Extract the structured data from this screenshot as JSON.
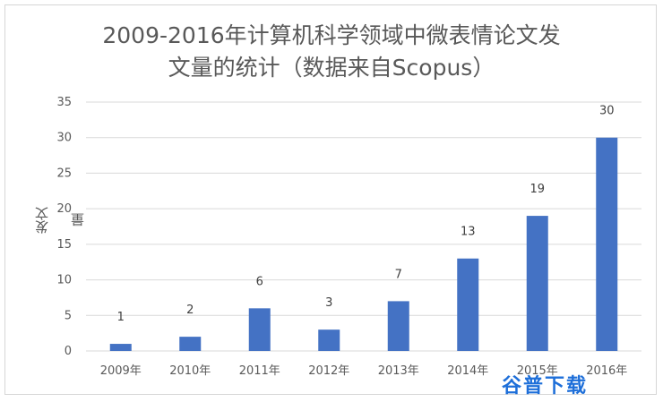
{
  "chart_data": {
    "type": "bar",
    "title_line1": "2009-2016年计算机科学领域中微表情论文发",
    "title_line2": "文量的统计（数据来自Scopus）",
    "xlabel": "",
    "ylabel": "发文量",
    "categories": [
      "2009年",
      "2010年",
      "2011年",
      "2012年",
      "2013年",
      "2014年",
      "2015年",
      "2016年"
    ],
    "values": [
      1,
      2,
      6,
      3,
      7,
      13,
      19,
      30
    ],
    "ylim": [
      0,
      35
    ],
    "yticks": [
      0,
      5,
      10,
      15,
      20,
      25,
      30,
      35
    ],
    "grid": true,
    "bar_color": "#4472c4",
    "grid_color": "#d9d9d9",
    "legend": "none"
  },
  "watermark": "谷普下载"
}
